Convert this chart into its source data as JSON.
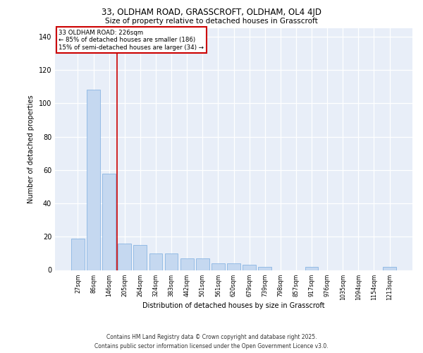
{
  "title_line1": "33, OLDHAM ROAD, GRASSCROFT, OLDHAM, OL4 4JD",
  "title_line2": "Size of property relative to detached houses in Grasscroft",
  "xlabel": "Distribution of detached houses by size in Grasscroft",
  "ylabel": "Number of detached properties",
  "categories": [
    "27sqm",
    "86sqm",
    "146sqm",
    "205sqm",
    "264sqm",
    "324sqm",
    "383sqm",
    "442sqm",
    "501sqm",
    "561sqm",
    "620sqm",
    "679sqm",
    "739sqm",
    "798sqm",
    "857sqm",
    "917sqm",
    "976sqm",
    "1035sqm",
    "1094sqm",
    "1154sqm",
    "1213sqm"
  ],
  "bar_values": [
    19,
    108,
    58,
    16,
    15,
    10,
    10,
    7,
    7,
    4,
    4,
    3,
    2,
    0,
    0,
    2,
    0,
    0,
    0,
    0,
    2
  ],
  "bar_color": "#c5d8f0",
  "bar_edge_color": "#7aace0",
  "vline_x": 2.5,
  "vline_color": "#cc0000",
  "annotation_text": "33 OLDHAM ROAD: 226sqm\n← 85% of detached houses are smaller (186)\n15% of semi-detached houses are larger (34) →",
  "annotation_box_facecolor": "white",
  "annotation_box_edgecolor": "#cc0000",
  "ylim": [
    0,
    145
  ],
  "yticks": [
    0,
    20,
    40,
    60,
    80,
    100,
    120,
    140
  ],
  "plot_bgcolor": "#e8eef8",
  "grid_color": "white",
  "footer": "Contains HM Land Registry data © Crown copyright and database right 2025.\nContains public sector information licensed under the Open Government Licence v3.0."
}
